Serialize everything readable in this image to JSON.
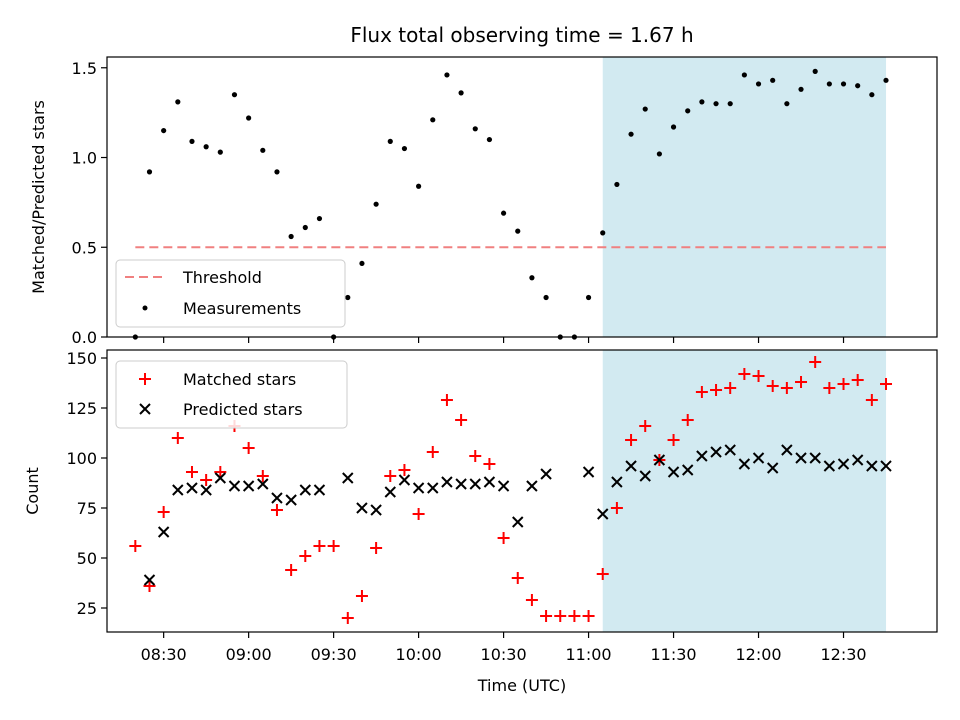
{
  "title": "Flux total observing time = 1.67 h",
  "xlabel": "Time (UTC)",
  "x_ticks": [
    "08:30",
    "09:00",
    "09:30",
    "10:00",
    "10:30",
    "11:00",
    "11:30",
    "12:00",
    "12:30"
  ],
  "colors": {
    "threshold": "#f08080",
    "measurements": "#000000",
    "matched": "#ff0000",
    "predicted": "#000000",
    "highlight": "#add8e6"
  },
  "chart_data": [
    {
      "type": "scatter",
      "panel": "top",
      "ylabel": "Matched/Predicted stars",
      "xlim": [
        "08:10",
        "13:03"
      ],
      "ylim": [
        0,
        1.56
      ],
      "y_ticks": [
        "0.0",
        "0.5",
        "1.0",
        "1.5"
      ],
      "highlight_span": [
        "11:05",
        "12:45"
      ],
      "legend_position": "lower-left",
      "threshold": {
        "name": "Threshold",
        "value": 0.5,
        "x_range": [
          "08:20",
          "12:45"
        ],
        "style": "dashed"
      },
      "series": [
        {
          "name": "Measurements",
          "marker": "dot",
          "x": [
            "08:20",
            "08:25",
            "08:30",
            "08:35",
            "08:40",
            "08:45",
            "08:50",
            "08:55",
            "09:00",
            "09:05",
            "09:10",
            "09:15",
            "09:20",
            "09:25",
            "09:30",
            "09:35",
            "09:40",
            "09:45",
            "09:50",
            "09:55",
            "10:00",
            "10:05",
            "10:10",
            "10:15",
            "10:20",
            "10:25",
            "10:30",
            "10:35",
            "10:40",
            "10:45",
            "10:50",
            "10:55",
            "11:00",
            "11:05",
            "11:10",
            "11:15",
            "11:20",
            "11:25",
            "11:30",
            "11:35",
            "11:40",
            "11:45",
            "11:50",
            "11:55",
            "12:00",
            "12:05",
            "12:10",
            "12:15",
            "12:20",
            "12:25",
            "12:30",
            "12:35",
            "12:40",
            "12:45"
          ],
          "y": [
            0.0,
            0.92,
            1.15,
            1.31,
            1.09,
            1.06,
            1.03,
            1.35,
            1.22,
            1.04,
            0.92,
            0.56,
            0.61,
            0.66,
            0.0,
            0.22,
            0.41,
            0.74,
            1.09,
            1.05,
            0.84,
            1.21,
            1.46,
            1.36,
            1.16,
            1.1,
            0.69,
            0.59,
            0.33,
            0.22,
            0.0,
            0.0,
            0.22,
            0.58,
            0.85,
            1.13,
            1.27,
            1.02,
            1.17,
            1.26,
            1.31,
            1.3,
            1.3,
            1.46,
            1.41,
            1.43,
            1.3,
            1.38,
            1.48,
            1.41,
            1.41,
            1.4,
            1.35,
            1.43
          ]
        }
      ]
    },
    {
      "type": "scatter",
      "panel": "bottom",
      "ylabel": "Count",
      "xlim": [
        "08:10",
        "13:03"
      ],
      "ylim": [
        13,
        154
      ],
      "y_ticks": [
        "25",
        "50",
        "75",
        "100",
        "125",
        "150"
      ],
      "highlight_span": [
        "11:05",
        "12:45"
      ],
      "legend_position": "upper-left",
      "series": [
        {
          "name": "Matched stars",
          "marker": "plus",
          "x": [
            "08:20",
            "08:25",
            "08:30",
            "08:35",
            "08:40",
            "08:45",
            "08:50",
            "08:55",
            "09:00",
            "09:05",
            "09:10",
            "09:15",
            "09:20",
            "09:25",
            "09:30",
            "09:35",
            "09:40",
            "09:45",
            "09:50",
            "09:55",
            "10:00",
            "10:05",
            "10:10",
            "10:15",
            "10:20",
            "10:25",
            "10:30",
            "10:35",
            "10:40",
            "10:45",
            "10:50",
            "10:55",
            "11:00",
            "11:05",
            "11:10",
            "11:15",
            "11:20",
            "11:25",
            "11:30",
            "11:35",
            "11:40",
            "11:45",
            "11:50",
            "11:55",
            "12:00",
            "12:05",
            "12:10",
            "12:15",
            "12:20",
            "12:25",
            "12:30",
            "12:35",
            "12:40",
            "12:45"
          ],
          "y": [
            56,
            36,
            73,
            110,
            93,
            89,
            93,
            116,
            105,
            91,
            74,
            44,
            51,
            56,
            56,
            20,
            31,
            55,
            91,
            94,
            72,
            103,
            129,
            119,
            101,
            97,
            60,
            40,
            29,
            21,
            21,
            21,
            21,
            42,
            75,
            109,
            116,
            99,
            109,
            119,
            133,
            134,
            135,
            142,
            141,
            136,
            135,
            138,
            148,
            135,
            137,
            139,
            129,
            137
          ]
        },
        {
          "name": "Predicted stars",
          "marker": "x",
          "x": [
            "08:25",
            "08:30",
            "08:35",
            "08:40",
            "08:45",
            "08:50",
            "08:55",
            "09:00",
            "09:05",
            "09:10",
            "09:15",
            "09:20",
            "09:25",
            "09:35",
            "09:40",
            "09:45",
            "09:50",
            "09:55",
            "10:00",
            "10:05",
            "10:10",
            "10:15",
            "10:20",
            "10:25",
            "10:30",
            "10:35",
            "10:40",
            "10:45",
            "11:00",
            "11:05",
            "11:10",
            "11:15",
            "11:20",
            "11:25",
            "11:30",
            "11:35",
            "11:40",
            "11:45",
            "11:50",
            "11:55",
            "12:00",
            "12:05",
            "12:10",
            "12:15",
            "12:20",
            "12:25",
            "12:30",
            "12:35",
            "12:40",
            "12:45"
          ],
          "y": [
            39,
            63,
            84,
            85,
            84,
            90,
            86,
            86,
            87,
            80,
            79,
            84,
            84,
            90,
            75,
            74,
            83,
            89,
            85,
            85,
            88,
            87,
            87,
            88,
            86,
            68,
            86,
            92,
            93,
            72,
            88,
            96,
            91,
            99,
            93,
            94,
            101,
            103,
            104,
            97,
            100,
            95,
            104,
            100,
            100,
            96,
            97,
            99,
            96,
            96
          ]
        }
      ]
    }
  ]
}
